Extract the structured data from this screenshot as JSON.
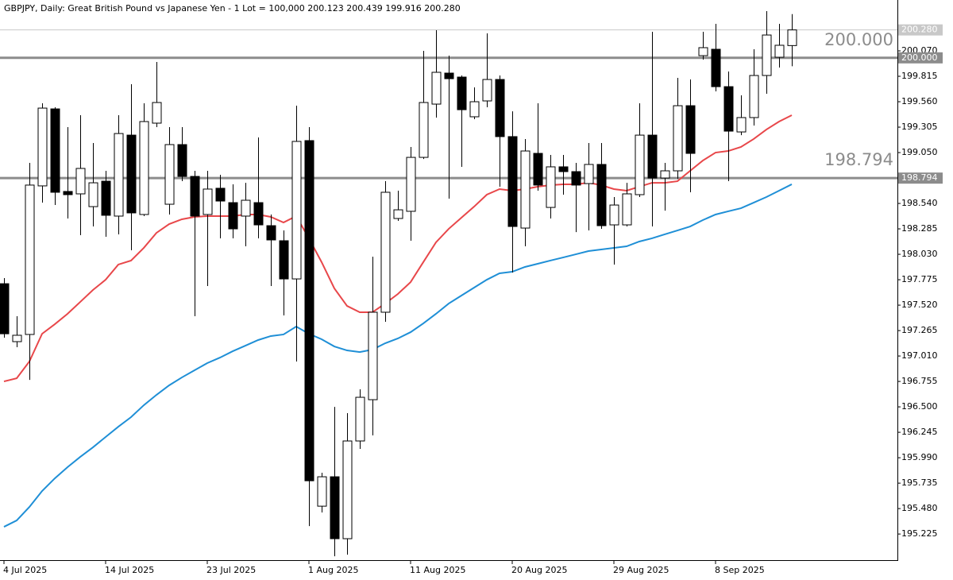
{
  "chart_data": {
    "type": "candlestick",
    "title": "GBPJPY, Daily:  Great British Pound vs Japanese Yen - 1 Lot = 100,000  200.123 200.439 199.916 200.280",
    "categories": [
      "4 Jul 2025",
      null,
      null,
      null,
      null,
      null,
      null,
      null,
      "14 Jul 2025",
      null,
      null,
      null,
      null,
      null,
      null,
      null,
      "23 Jul 2025",
      null,
      null,
      null,
      null,
      null,
      null,
      null,
      "1 Aug 2025",
      null,
      null,
      null,
      null,
      null,
      null,
      null,
      "11 Aug 2025",
      null,
      null,
      null,
      null,
      null,
      null,
      null,
      "20 Aug 2025",
      null,
      null,
      null,
      null,
      null,
      null,
      null,
      "29 Aug 2025",
      null,
      null,
      null,
      null,
      null,
      null,
      null,
      "8 Sep 2025",
      null,
      null,
      null,
      null,
      null,
      null
    ],
    "open": [
      197.735,
      197.154,
      197.226,
      198.716,
      199.488,
      198.66,
      198.636,
      198.508,
      198.763,
      198.413,
      199.225,
      198.429,
      199.345,
      198.532,
      199.13,
      198.811,
      198.429,
      198.692,
      198.548,
      198.413,
      198.548,
      198.317,
      198.166,
      197.783,
      199.17,
      195.504,
      195.799,
      195.178,
      196.158,
      196.572,
      197.449,
      198.389,
      198.461,
      199.002,
      199.536,
      199.847,
      199.807,
      199.409,
      199.568,
      199.783,
      199.21,
      198.293,
      199.042,
      198.5,
      198.907,
      198.859,
      198.739,
      198.931,
      198.325,
      198.325,
      198.628,
      199.225,
      198.795,
      198.867,
      199.52,
      200.022,
      200.086,
      199.711,
      199.257,
      199.401,
      199.823,
      200.006,
      200.123
    ],
    "high": [
      197.791,
      197.409,
      198.947,
      199.544,
      199.504,
      199.305,
      199.425,
      199.146,
      198.867,
      199.425,
      199.735,
      199.544,
      199.959,
      199.305,
      199.305,
      198.867,
      198.867,
      198.827,
      198.732,
      198.747,
      199.202,
      198.429,
      198.269,
      199.52,
      199.305,
      195.839,
      196.5,
      196.437,
      196.676,
      198.006,
      198.763,
      198.668,
      199.106,
      200.07,
      200.277,
      200.022,
      199.823,
      199.704,
      200.245,
      199.823,
      199.464,
      199.186,
      199.544,
      199.026,
      199.026,
      198.947,
      199.146,
      199.146,
      198.604,
      198.747,
      199.544,
      200.261,
      198.947,
      199.799,
      199.783,
      200.261,
      200.341,
      199.863,
      199.624,
      200.086,
      200.468,
      200.341,
      200.439
    ],
    "low": [
      197.194,
      197.098,
      196.771,
      198.548,
      198.524,
      198.389,
      198.222,
      198.309,
      198.206,
      198.23,
      198.07,
      198.413,
      199.305,
      198.429,
      198.763,
      197.409,
      197.712,
      198.19,
      198.19,
      198.11,
      198.19,
      197.712,
      197.417,
      196.955,
      195.305,
      195.441,
      195.002,
      195.018,
      196.078,
      196.214,
      197.353,
      198.365,
      198.166,
      198.986,
      199.401,
      198.588,
      198.907,
      199.385,
      199.504,
      198.708,
      197.847,
      198.11,
      198.668,
      198.389,
      198.628,
      198.253,
      198.269,
      198.285,
      197.927,
      198.309,
      198.604,
      198.309,
      198.468,
      198.787,
      198.652,
      199.982,
      199.664,
      198.763,
      199.225,
      199.321,
      199.64,
      199.903,
      199.916
    ],
    "close": [
      197.233,
      197.218,
      198.724,
      199.496,
      198.652,
      198.628,
      198.891,
      198.747,
      198.421,
      199.241,
      198.445,
      199.361,
      199.552,
      199.13,
      198.811,
      198.413,
      198.684,
      198.564,
      198.285,
      198.572,
      198.325,
      198.174,
      197.783,
      199.162,
      195.759,
      195.799,
      195.178,
      196.158,
      196.596,
      197.449,
      198.652,
      198.476,
      199.002,
      199.552,
      199.855,
      199.791,
      199.48,
      199.56,
      199.783,
      199.21,
      198.309,
      199.066,
      198.724,
      198.907,
      198.859,
      198.724,
      198.931,
      198.317,
      198.524,
      198.636,
      199.225,
      198.795,
      198.867,
      199.52,
      199.042,
      200.102,
      199.711,
      199.265,
      199.401,
      199.823,
      200.229,
      200.126,
      200.28
    ],
    "up_color": "#ffffff",
    "down_color": "#000000",
    "series": [
      {
        "color": "#e8474a",
        "values": [
          196.755,
          196.787,
          196.955,
          197.233,
          197.329,
          197.433,
          197.552,
          197.672,
          197.775,
          197.927,
          197.967,
          198.094,
          198.245,
          198.333,
          198.381,
          198.405,
          198.413,
          198.413,
          198.413,
          198.429,
          198.429,
          198.405,
          198.349,
          198.413,
          198.19,
          197.951,
          197.688,
          197.512,
          197.449,
          197.449,
          197.536,
          197.632,
          197.751,
          197.951,
          198.15,
          198.285,
          198.397,
          198.508,
          198.628,
          198.684,
          198.668,
          198.684,
          198.708,
          198.724,
          198.732,
          198.732,
          198.747,
          198.724,
          198.684,
          198.668,
          198.708,
          198.747,
          198.747,
          198.763,
          198.867,
          198.97,
          199.05,
          199.066,
          199.106,
          199.186,
          199.281,
          199.361,
          199.425
        ]
      },
      {
        "color": "#1f8fd6",
        "values": [
          195.297,
          195.361,
          195.496,
          195.656,
          195.783,
          195.895,
          195.998,
          196.094,
          196.198,
          196.301,
          196.397,
          196.516,
          196.62,
          196.716,
          196.795,
          196.867,
          196.939,
          196.994,
          197.058,
          197.114,
          197.17,
          197.21,
          197.226,
          197.305,
          197.233,
          197.178,
          197.106,
          197.066,
          197.05,
          197.074,
          197.138,
          197.186,
          197.249,
          197.337,
          197.433,
          197.536,
          197.616,
          197.696,
          197.775,
          197.839,
          197.855,
          197.903,
          197.935,
          197.967,
          197.998,
          198.03,
          198.062,
          198.078,
          198.094,
          198.11,
          198.158,
          198.19,
          198.23,
          198.269,
          198.309,
          198.373,
          198.429,
          198.461,
          198.492,
          198.548,
          198.604,
          198.668,
          198.732
        ]
      }
    ],
    "hlines": [
      {
        "value": 200,
        "label": "200.000"
      },
      {
        "value": 198.794,
        "label": "198.794"
      }
    ],
    "price_line": {
      "value": 200.28,
      "label": "200.280"
    },
    "ylim": [
      194.963,
      200.58
    ],
    "yticks": [
      {
        "value": 200.07,
        "label": "200.070"
      },
      199.815,
      {
        "value": 199.56,
        "label": "199.560"
      },
      199.305,
      {
        "value": 199.05,
        "label": "199.050"
      },
      {
        "value": 198.54,
        "label": "198.540"
      },
      198.285,
      {
        "value": 198.03,
        "label": "198.030"
      },
      197.775,
      {
        "value": 197.52,
        "label": "197.520"
      },
      197.265,
      {
        "value": 197.01,
        "label": "197.010"
      },
      196.755,
      {
        "value": 196.5,
        "label": "196.500"
      },
      196.245,
      {
        "value": 195.99,
        "label": "195.990"
      },
      195.735,
      {
        "value": 195.48,
        "label": "195.480"
      },
      195.225
    ]
  }
}
